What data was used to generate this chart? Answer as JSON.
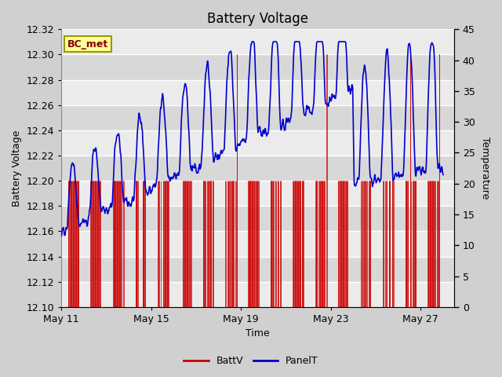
{
  "title": "Battery Voltage",
  "xlabel": "Time",
  "ylabel_left": "Battery Voltage",
  "ylabel_right": "Temperature",
  "legend_label": "BC_met",
  "BattV_label": "BattV",
  "PanelT_label": "PanelT",
  "ylim_left": [
    12.1,
    12.32
  ],
  "ylim_right": [
    0,
    45
  ],
  "yticks_left": [
    12.1,
    12.12,
    12.14,
    12.16,
    12.18,
    12.2,
    12.22,
    12.24,
    12.26,
    12.28,
    12.3,
    12.32
  ],
  "yticks_right": [
    0,
    5,
    10,
    15,
    20,
    25,
    30,
    35,
    40,
    45
  ],
  "xtick_positions": [
    0,
    4,
    8,
    12,
    16
  ],
  "xtick_labels": [
    "May 11",
    "May 15",
    "May 19",
    "May 23",
    "May 27"
  ],
  "xlim": [
    0,
    17.5
  ],
  "batt_color": "#cc0000",
  "panel_color": "#0000cc",
  "fig_bg_color": "#d0d0d0",
  "plot_bg_color": "#e8e8e8",
  "grid_color": "#ffffff",
  "band_color_light": "#ebebeb",
  "band_color_dark": "#d8d8d8",
  "legend_box_facecolor": "#ffff99",
  "legend_box_edgecolor": "#999900",
  "legend_text_color": "#880000",
  "title_fontsize": 12,
  "label_fontsize": 9,
  "tick_fontsize": 9,
  "legend_fontsize": 9
}
